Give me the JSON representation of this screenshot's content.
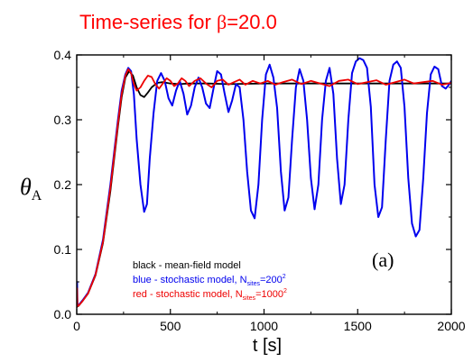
{
  "chart_data": {
    "type": "line",
    "title_prefix": "Time-series for ",
    "title_symbol": "β",
    "title_suffix": "=20.0",
    "xlabel": "t [s]",
    "ylabel_main": "θ",
    "ylabel_sub": "A",
    "xlim": [
      0,
      2000
    ],
    "ylim": [
      0.0,
      0.4
    ],
    "xticks": [
      0,
      500,
      1000,
      1500,
      2000
    ],
    "xtick_labels": [
      "0",
      "500",
      "1000",
      "1500",
      "2000"
    ],
    "yticks": [
      0.0,
      0.1,
      0.2,
      0.3,
      0.4
    ],
    "ytick_labels": [
      "0.0",
      "0.1",
      "0.2",
      "0.3",
      "0.4"
    ],
    "grid": false,
    "panel_label": "(a)",
    "legend_placement": "bottom-left",
    "legend": [
      {
        "color_name": "black",
        "text": "black -   mean-field model",
        "sub": "",
        "sup": "",
        "tail": ""
      },
      {
        "color_name": "blue",
        "text": "blue -   stochastic model, N",
        "sub": "sites",
        "sup": "2",
        "tail": "=200"
      },
      {
        "color_name": "red",
        "text": "red -   stochastic model, N",
        "sub": "sites",
        "sup": "2",
        "tail": "=1000"
      }
    ],
    "colors": {
      "title": "#ff0000",
      "black": "#000000",
      "blue": "#0000ee",
      "red": "#ee0000"
    },
    "series": [
      {
        "color_name": "black",
        "x": [
          0,
          2,
          4,
          10,
          30,
          60,
          100,
          140,
          180,
          200,
          220,
          240,
          260,
          280,
          300,
          320,
          340,
          360,
          380,
          400,
          430,
          460,
          500,
          550,
          600,
          700,
          800,
          1000,
          1200,
          1500,
          2000
        ],
        "y": [
          0.01,
          0.03,
          0.012,
          0.013,
          0.02,
          0.032,
          0.06,
          0.11,
          0.19,
          0.24,
          0.29,
          0.335,
          0.365,
          0.375,
          0.368,
          0.35,
          0.338,
          0.335,
          0.342,
          0.35,
          0.357,
          0.358,
          0.356,
          0.355,
          0.356,
          0.356,
          0.355,
          0.356,
          0.356,
          0.356,
          0.356
        ]
      },
      {
        "color_name": "blue",
        "x": [
          0,
          2,
          4,
          10,
          30,
          60,
          100,
          140,
          180,
          200,
          220,
          240,
          260,
          275,
          290,
          305,
          320,
          340,
          360,
          375,
          390,
          410,
          430,
          450,
          470,
          490,
          510,
          530,
          550,
          570,
          590,
          610,
          630,
          650,
          670,
          690,
          710,
          730,
          750,
          770,
          790,
          810,
          830,
          850,
          870,
          890,
          910,
          930,
          950,
          970,
          990,
          1010,
          1030,
          1050,
          1070,
          1090,
          1110,
          1130,
          1150,
          1170,
          1190,
          1210,
          1230,
          1250,
          1270,
          1290,
          1310,
          1330,
          1350,
          1370,
          1390,
          1410,
          1430,
          1450,
          1470,
          1490,
          1510,
          1530,
          1550,
          1570,
          1590,
          1610,
          1630,
          1650,
          1670,
          1690,
          1710,
          1730,
          1750,
          1770,
          1790,
          1810,
          1830,
          1850,
          1870,
          1890,
          1910,
          1930,
          1950,
          1970,
          1990,
          2000
        ],
        "y": [
          0.012,
          0.05,
          0.015,
          0.014,
          0.021,
          0.033,
          0.062,
          0.115,
          0.2,
          0.25,
          0.3,
          0.345,
          0.37,
          0.38,
          0.375,
          0.34,
          0.27,
          0.2,
          0.158,
          0.17,
          0.24,
          0.31,
          0.36,
          0.372,
          0.36,
          0.333,
          0.322,
          0.345,
          0.36,
          0.34,
          0.308,
          0.322,
          0.35,
          0.365,
          0.35,
          0.325,
          0.318,
          0.348,
          0.375,
          0.37,
          0.34,
          0.312,
          0.33,
          0.355,
          0.35,
          0.3,
          0.22,
          0.16,
          0.148,
          0.2,
          0.3,
          0.37,
          0.385,
          0.365,
          0.318,
          0.22,
          0.16,
          0.18,
          0.27,
          0.35,
          0.378,
          0.36,
          0.3,
          0.21,
          0.162,
          0.2,
          0.3,
          0.36,
          0.38,
          0.34,
          0.24,
          0.17,
          0.2,
          0.3,
          0.372,
          0.39,
          0.395,
          0.392,
          0.38,
          0.32,
          0.2,
          0.15,
          0.165,
          0.27,
          0.36,
          0.385,
          0.39,
          0.38,
          0.32,
          0.21,
          0.14,
          0.12,
          0.13,
          0.21,
          0.31,
          0.37,
          0.382,
          0.378,
          0.352,
          0.348,
          0.355,
          0.36
        ]
      },
      {
        "color_name": "red",
        "x": [
          0,
          2,
          4,
          10,
          30,
          60,
          100,
          140,
          180,
          200,
          220,
          240,
          260,
          275,
          290,
          305,
          320,
          340,
          360,
          380,
          400,
          420,
          440,
          460,
          480,
          500,
          520,
          540,
          560,
          580,
          600,
          630,
          660,
          690,
          720,
          750,
          780,
          810,
          840,
          870,
          900,
          940,
          980,
          1020,
          1060,
          1100,
          1150,
          1200,
          1250,
          1300,
          1350,
          1400,
          1450,
          1500,
          1550,
          1600,
          1650,
          1700,
          1750,
          1800,
          1850,
          1900,
          1950,
          2000
        ],
        "y": [
          0.011,
          0.04,
          0.013,
          0.013,
          0.02,
          0.032,
          0.061,
          0.112,
          0.195,
          0.245,
          0.295,
          0.34,
          0.368,
          0.378,
          0.372,
          0.355,
          0.345,
          0.35,
          0.36,
          0.368,
          0.366,
          0.355,
          0.348,
          0.356,
          0.364,
          0.36,
          0.352,
          0.356,
          0.364,
          0.36,
          0.352,
          0.36,
          0.364,
          0.356,
          0.35,
          0.36,
          0.362,
          0.354,
          0.358,
          0.362,
          0.354,
          0.36,
          0.356,
          0.36,
          0.354,
          0.358,
          0.362,
          0.355,
          0.36,
          0.356,
          0.352,
          0.36,
          0.362,
          0.355,
          0.358,
          0.361,
          0.354,
          0.358,
          0.362,
          0.356,
          0.358,
          0.36,
          0.354,
          0.357
        ]
      }
    ]
  }
}
